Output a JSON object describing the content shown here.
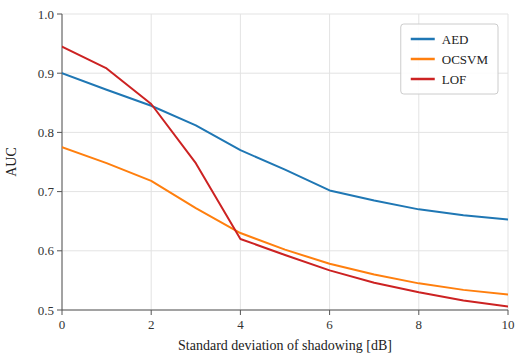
{
  "chart_data": {
    "type": "line",
    "xlabel": "Standard deviation of shadowing [dB]",
    "ylabel": "AUC",
    "x": [
      0,
      1,
      2,
      3,
      4,
      5,
      6,
      7,
      8,
      9,
      10
    ],
    "series": [
      {
        "name": "AED",
        "color": "#1f77b4",
        "values": [
          0.9,
          0.872,
          0.845,
          0.812,
          0.77,
          0.737,
          0.702,
          0.685,
          0.67,
          0.66,
          0.653
        ]
      },
      {
        "name": "OCSVM",
        "color": "#ff7f0e",
        "values": [
          0.775,
          0.748,
          0.718,
          0.672,
          0.63,
          0.602,
          0.578,
          0.56,
          0.545,
          0.534,
          0.526
        ]
      },
      {
        "name": "LOF",
        "color": "#cc2222",
        "values": [
          0.945,
          0.908,
          0.848,
          0.748,
          0.62,
          0.593,
          0.567,
          0.546,
          0.53,
          0.516,
          0.506
        ]
      }
    ],
    "xlim": [
      0,
      10
    ],
    "ylim": [
      0.5,
      1.0
    ],
    "xticks": [
      0,
      2,
      4,
      6,
      8,
      10
    ],
    "yticks": [
      0.5,
      0.6,
      0.7,
      0.8,
      0.9,
      {
        "value": 1.0,
        "label": "1.0"
      }
    ],
    "grid": true,
    "legend": "upper right"
  }
}
